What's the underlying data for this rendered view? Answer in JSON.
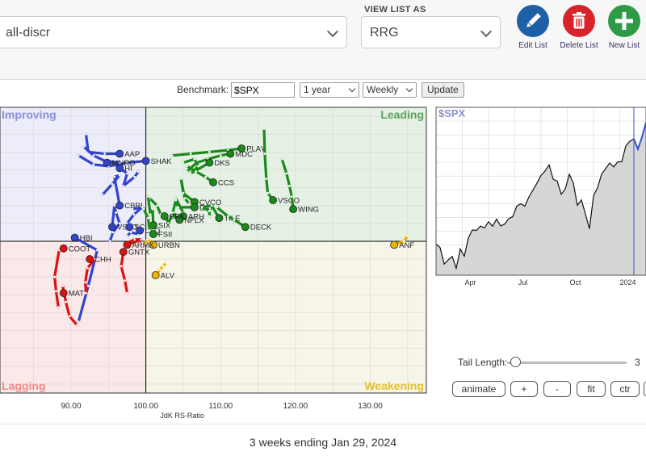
{
  "list_select": {
    "value": "all-discr"
  },
  "view_list": {
    "label": "VIEW LIST AS",
    "value": "RRG"
  },
  "actions": [
    {
      "name": "edit-list",
      "label": "Edit List",
      "color": "#1f5fa6",
      "icon": "pencil-icon"
    },
    {
      "name": "delete-list",
      "label": "Delete List",
      "color": "#d9232a",
      "icon": "trash-icon"
    },
    {
      "name": "new-list",
      "label": "New List",
      "color": "#2e9a46",
      "icon": "plus-icon"
    }
  ],
  "controls": {
    "benchmark_label": "Benchmark:",
    "benchmark_value": "$SPX",
    "period": "1 year",
    "frequency": "Weekly",
    "update_label": "Update"
  },
  "chart_data": [
    {
      "type": "scatter",
      "title": "",
      "xlabel": "JdK RS-Ratio",
      "ylabel": "",
      "xlim": [
        80.5,
        137.5
      ],
      "ylim": [
        91.5,
        107.5
      ],
      "center": [
        100,
        100
      ],
      "x_ticks": [
        "90.00",
        "100.00",
        "110.00",
        "120.00",
        "130.00"
      ],
      "x_tick_values": [
        90,
        100,
        110,
        120,
        130
      ],
      "quadrants": [
        {
          "label": "Improving",
          "color": "#8a8fe0"
        },
        {
          "label": "Leading",
          "color": "#5aa55a"
        },
        {
          "label": "Lagging",
          "color": "#f08a8a"
        },
        {
          "label": "Weakening",
          "color": "#e6c12a"
        }
      ],
      "colors": {
        "improving": "#3344cc",
        "leading": "#1a8a1a",
        "lagging": "#dd1111",
        "weakening": "#f0b400"
      },
      "series": [
        {
          "name": "AAP",
          "quadrant": "improving",
          "tail": [
            [
              92.0,
              106.0
            ],
            [
              92.3,
              105.0
            ],
            [
              94.5,
              104.9
            ],
            [
              96.5,
              104.9
            ]
          ]
        },
        {
          "name": "SHAK",
          "quadrant": "improving",
          "tail": [
            [
              91.0,
              104.8
            ],
            [
              93.0,
              104.3
            ],
            [
              95.0,
              104.2
            ],
            [
              97.5,
              104.4
            ],
            [
              100.0,
              104.5
            ]
          ]
        },
        {
          "name": "MNRO",
          "quadrant": "improving",
          "tail": [
            [
              91.7,
              105.3
            ],
            [
              93.0,
              104.8
            ],
            [
              94.5,
              104.5
            ],
            [
              96.5,
              104.4
            ],
            [
              94.8,
              104.4
            ]
          ]
        },
        {
          "name": "HI",
          "quadrant": "improving",
          "tail": [
            [
              99.0,
              103.9
            ],
            [
              98.5,
              103.6
            ],
            [
              97.0,
              103.1
            ],
            [
              97.5,
              103.8
            ],
            [
              96.5,
              104.1
            ]
          ]
        },
        {
          "name": "CBRL",
          "quadrant": "improving",
          "tail": [
            [
              94.2,
              102.6
            ],
            [
              95.5,
              103.2
            ],
            [
              96.5,
              103.7
            ],
            [
              95.8,
              103.6
            ],
            [
              96.5,
              102.0
            ]
          ]
        },
        {
          "name": "VSTO",
          "quadrant": "improving",
          "tail": [
            [
              95.2,
              100.0
            ],
            [
              95.6,
              100.5
            ],
            [
              96.5,
              101.0
            ],
            [
              96.0,
              101.6
            ],
            [
              95.8,
              102.0
            ],
            [
              95.5,
              100.8
            ]
          ]
        },
        {
          "name": "SCI",
          "quadrant": "improving",
          "tail": [
            [
              98.2,
              101.8
            ],
            [
              99.5,
              101.9
            ],
            [
              98.4,
              101.5
            ],
            [
              97.5,
              101.0
            ],
            [
              97.8,
              100.8
            ]
          ]
        },
        {
          "name": "LKQ",
          "quadrant": "improving",
          "tail": [
            [
              97.5,
              100.3
            ],
            [
              98.0,
              100.5
            ],
            [
              99.0,
              100.4
            ],
            [
              99.2,
              100.6
            ]
          ]
        },
        {
          "name": "HBI",
          "quadrant": "improving",
          "tail": [
            [
              91.0,
              95.5
            ],
            [
              92.3,
              97.5
            ],
            [
              93.5,
              99.5
            ],
            [
              90.5,
              100.2
            ]
          ]
        },
        {
          "name": "PLAY",
          "quadrant": "leading",
          "tail": [
            [
              103.5,
              104.8
            ],
            [
              106.0,
              104.9
            ],
            [
              108.5,
              105.0
            ],
            [
              111.0,
              105.1
            ],
            [
              112.8,
              105.2
            ]
          ]
        },
        {
          "name": "MDC",
          "quadrant": "leading",
          "tail": [
            [
              105.5,
              103.9
            ],
            [
              106.8,
              104.4
            ],
            [
              108.3,
              104.6
            ],
            [
              110.0,
              104.8
            ],
            [
              111.3,
              104.9
            ]
          ]
        },
        {
          "name": "DKS",
          "quadrant": "leading",
          "tail": [
            [
              105.0,
              104.4
            ],
            [
              106.5,
              104.6
            ],
            [
              107.0,
              104.2
            ],
            [
              106.0,
              103.8
            ],
            [
              108.5,
              104.4
            ]
          ]
        },
        {
          "name": "CCS",
          "quadrant": "leading",
          "tail": [
            [
              105.5,
              104.2
            ],
            [
              106.7,
              103.9
            ],
            [
              108.0,
              103.6
            ],
            [
              109.0,
              103.3
            ]
          ]
        },
        {
          "name": "CVCO",
          "quadrant": "leading",
          "tail": [
            [
              105.8,
              102.1
            ],
            [
              105.2,
              102.4
            ],
            [
              104.7,
              103.5
            ],
            [
              105.0,
              102.7
            ],
            [
              106.5,
              102.2
            ]
          ]
        },
        {
          "name": "EAT",
          "quadrant": "leading",
          "tail": [
            [
              105.0,
              101.6
            ],
            [
              104.0,
              102.4
            ],
            [
              104.3,
              101.9
            ],
            [
              106.5,
              101.9
            ]
          ]
        },
        {
          "name": "ARH",
          "quadrant": "leading",
          "tail": [
            [
              104.0,
              102.3
            ],
            [
              103.6,
              101.6
            ],
            [
              104.2,
              101.2
            ],
            [
              104.6,
              101.5
            ],
            [
              105.0,
              101.4
            ]
          ]
        },
        {
          "name": "NFLX",
          "quadrant": "leading",
          "tail": [
            [
              102.5,
              101.6
            ],
            [
              103.0,
              101.0
            ],
            [
              103.5,
              101.5
            ],
            [
              104.2,
              101.5
            ],
            [
              104.5,
              101.2
            ]
          ]
        },
        {
          "name": "BRK",
          "quadrant": "leading",
          "tail": [
            [
              100.5,
              102.4
            ],
            [
              101.5,
              102.0
            ],
            [
              102.0,
              101.5
            ],
            [
              102.5,
              101.4
            ]
          ]
        },
        {
          "name": "SIX",
          "quadrant": "leading",
          "tail": [
            [
              100.3,
              102.5
            ],
            [
              100.6,
              101.5
            ],
            [
              100.9,
              101.8
            ],
            [
              101.0,
              100.9
            ]
          ]
        },
        {
          "name": "TILE",
          "quadrant": "leading",
          "tail": [
            [
              108.5,
              101.4
            ],
            [
              108.5,
              101.7
            ],
            [
              107.5,
              101.9
            ],
            [
              108.8,
              102.0
            ],
            [
              109.8,
              101.3
            ]
          ]
        },
        {
          "name": "DECK",
          "quadrant": "leading",
          "tail": [
            [
              109.5,
              101.9
            ],
            [
              111.0,
              101.4
            ],
            [
              111.8,
              101.2
            ],
            [
              113.3,
              100.8
            ]
          ]
        },
        {
          "name": "VSCO",
          "quadrant": "leading",
          "tail": [
            [
              115.8,
              106.3
            ],
            [
              115.9,
              104.9
            ],
            [
              116.1,
              103.5
            ],
            [
              116.3,
              102.7
            ],
            [
              117.0,
              102.3
            ]
          ]
        },
        {
          "name": "WING",
          "quadrant": "leading",
          "tail": [
            [
              118.2,
              104.6
            ],
            [
              118.8,
              103.8
            ],
            [
              119.2,
              103.1
            ],
            [
              119.5,
              102.5
            ],
            [
              119.7,
              101.8
            ]
          ]
        },
        {
          "name": "FSII",
          "quadrant": "leading",
          "tail": [
            [
              99.7,
              101.8
            ],
            [
              100.3,
              101.3
            ],
            [
              100.5,
              100.6
            ],
            [
              101.0,
              100.4
            ]
          ]
        },
        {
          "name": "ANF",
          "quadrant": "weakening",
          "tail": [
            [
              135.0,
              100.3
            ],
            [
              134.5,
              100.0
            ],
            [
              133.2,
              99.8
            ]
          ]
        },
        {
          "name": "URBN",
          "quadrant": "weakening",
          "tail": [
            [
              99.8,
              99.8
            ],
            [
              100.2,
              100.1
            ],
            [
              101.0,
              99.8
            ]
          ]
        },
        {
          "name": "ALV",
          "quadrant": "weakening",
          "tail": [
            [
              102.7,
              98.8
            ],
            [
              102.3,
              98.6
            ],
            [
              101.9,
              98.4
            ],
            [
              101.3,
              98.1
            ]
          ]
        },
        {
          "name": "ARMK",
          "quadrant": "lagging",
          "tail": [
            [
              97.5,
              99.9
            ],
            [
              98.5,
              100.1
            ],
            [
              99.4,
              100.1
            ],
            [
              97.5,
              99.8
            ]
          ]
        },
        {
          "name": "GNTX",
          "quadrant": "lagging",
          "tail": [
            [
              97.5,
              97.1
            ],
            [
              97.2,
              97.8
            ],
            [
              96.7,
              98.6
            ],
            [
              97.0,
              99.4
            ]
          ]
        },
        {
          "name": "CHH",
          "quadrant": "lagging",
          "tail": [
            [
              92.0,
              97.1
            ],
            [
              91.9,
              97.7
            ],
            [
              92.2,
              98.5
            ],
            [
              93.2,
              99.0
            ],
            [
              92.5,
              99.0
            ]
          ]
        },
        {
          "name": "MAT",
          "quadrant": "lagging",
          "tail": [
            [
              90.8,
              95.3
            ],
            [
              89.8,
              95.8
            ],
            [
              89.3,
              96.6
            ],
            [
              88.9,
              97.5
            ],
            [
              89.0,
              97.1
            ]
          ]
        },
        {
          "name": "COOT",
          "quadrant": "lagging",
          "tail": [
            [
              88.3,
              96.3
            ],
            [
              88.0,
              97.2
            ],
            [
              87.8,
              98.0
            ],
            [
              88.4,
              99.5
            ],
            [
              89.0,
              99.6
            ]
          ]
        }
      ]
    },
    {
      "type": "area",
      "title": "$SPX",
      "x_ticks": [
        "Apr",
        "Jul",
        "Oct",
        "2024"
      ],
      "x_tick_positions": [
        8.5,
        21.5,
        34.5,
        47.5
      ],
      "x": [
        0,
        1,
        2,
        3,
        4,
        5,
        6,
        7,
        8,
        9,
        10,
        11,
        12,
        13,
        14,
        15,
        16,
        17,
        18,
        19,
        20,
        21,
        22,
        23,
        24,
        25,
        26,
        27,
        28,
        29,
        30,
        31,
        32,
        33,
        34,
        35,
        36,
        37,
        38,
        39,
        40,
        41,
        42,
        43,
        44,
        45,
        46,
        47,
        48,
        49,
        50,
        51,
        52
      ],
      "values": [
        4005,
        3981,
        3861,
        3891,
        3916,
        3830,
        3970,
        3918,
        4050,
        4109,
        4105,
        4137,
        4124,
        4169,
        4136,
        4188,
        4138,
        4152,
        4192,
        4205,
        4282,
        4299,
        4282,
        4349,
        4398,
        4450,
        4505,
        4537,
        4582,
        4478,
        4464,
        4369,
        4405,
        4514,
        4450,
        4288,
        4327,
        4224,
        4117,
        4358,
        4415,
        4514,
        4555,
        4595,
        4567,
        4604,
        4604,
        4719,
        4754,
        4770,
        4697,
        4783,
        4890
      ],
      "ylim": [
        3780,
        5000
      ]
    }
  ],
  "tail_length": {
    "label": "Tail Length:",
    "value": "3"
  },
  "buttons": [
    "animate",
    "+",
    "-",
    "fit",
    "ctr"
  ],
  "footer": {
    "text": "3 weeks ending Jan 29, 2024"
  }
}
